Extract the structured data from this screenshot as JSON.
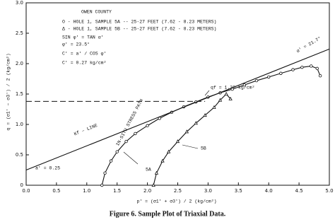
{
  "chart_data": {
    "type": "line",
    "x_label": "p' = (σ1' + σ3') / 2   (kg/cm²)",
    "y_label": "q = (σ1' − σ3') / 2   (kg/cm²)",
    "caption": "Figure 6.      Sample Plot of Triaxial Data.",
    "xlim": [
      0,
      5.0
    ],
    "ylim": [
      0,
      3.0
    ],
    "xticks": [
      {
        "value": 0,
        "label": "0.0"
      },
      0.5,
      {
        "value": 1,
        "label": "1.0"
      },
      1.5,
      {
        "value": 2,
        "label": "2.0"
      },
      2.5,
      {
        "value": 3,
        "label": "3.0"
      },
      3.5,
      {
        "value": 4,
        "label": "4.0"
      },
      4.5,
      {
        "value": 5,
        "label": "5.0"
      }
    ],
    "yticks": [
      0,
      0.5,
      {
        "value": 1,
        "label": "1.0"
      },
      1.5,
      {
        "value": 2,
        "label": "2.0"
      },
      2.5,
      {
        "value": 3,
        "label": "3.0"
      }
    ],
    "series": [
      {
        "name": "5A",
        "color": "#111",
        "marker": "circle",
        "x": [
          1.25,
          1.3,
          1.4,
          1.5,
          1.65,
          1.8,
          2.0,
          2.2,
          2.4,
          2.6,
          2.8,
          3.0,
          3.2,
          3.4,
          3.6,
          3.8,
          4.0,
          4.2,
          4.4,
          4.55,
          4.7,
          4.8,
          4.85
        ],
        "values": [
          0,
          0.2,
          0.4,
          0.55,
          0.72,
          0.85,
          0.98,
          1.1,
          1.2,
          1.29,
          1.37,
          1.45,
          1.52,
          1.58,
          1.65,
          1.72,
          1.78,
          1.84,
          1.9,
          1.94,
          1.96,
          1.92,
          1.8
        ]
      },
      {
        "name": "5B",
        "color": "#111",
        "marker": "triangle",
        "x": [
          2.1,
          2.15,
          2.25,
          2.35,
          2.5,
          2.65,
          2.8,
          2.95,
          3.1,
          3.2,
          3.3,
          3.37
        ],
        "values": [
          0,
          0.2,
          0.4,
          0.55,
          0.72,
          0.88,
          1.02,
          1.15,
          1.28,
          1.4,
          1.5,
          1.42
        ]
      },
      {
        "name": "Kf – LINE",
        "color": "#111",
        "marker": "none",
        "x": [
          0,
          5.0
        ],
        "values": [
          0.25,
          2.24
        ]
      }
    ],
    "reference_line": 1.38,
    "annotations": [
      "OWEN COUNTY",
      "O - HOLE 1, SAMPLE 5A -- 25-27 FEET (7.62 - 8.23 METERS)",
      "Δ - HOLE 1, SAMPLE 5B -- 25-27 FEET (7.62 - 8.23 METERS)",
      "SIN φ' = TAN α'",
      "φ' = 23.5°",
      "C' = a' / COS φ'",
      "C' = 0.27 kg/cm²",
      "qf = 1.38 kg/cm²",
      "α' = 21.7°",
      "IN-SITU STRESS PATH",
      "a' = 0.25"
    ]
  }
}
